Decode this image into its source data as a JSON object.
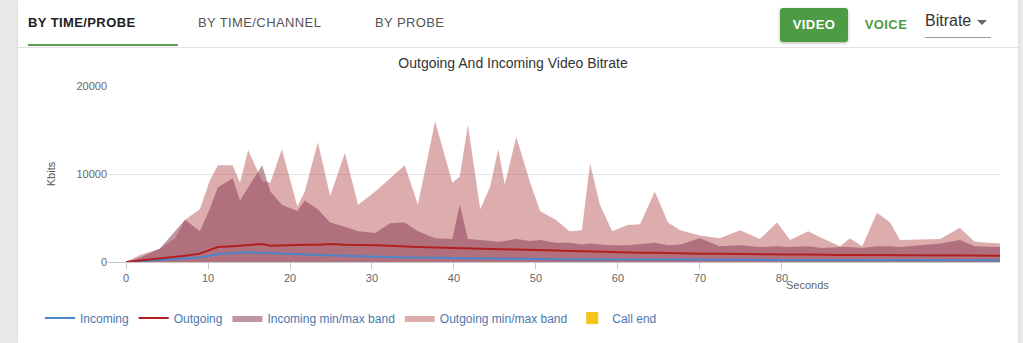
{
  "header": {
    "tabs": [
      "BY TIME/PROBE",
      "BY TIME/CHANNEL",
      "BY PROBE"
    ],
    "active_tab": "BY TIME/PROBE",
    "buttons": [
      "VIDEO",
      "VOICE"
    ],
    "active_button": "VIDEO",
    "dropdown": "Bitrate"
  },
  "chart_data": {
    "type": "line",
    "title": "Outgoing And Incoming Video Bitrate",
    "x_label": "Seconds",
    "y_label": "Kbits",
    "x": [
      0,
      1.7,
      4.1,
      6,
      7.2,
      9,
      10.2,
      11.2,
      13,
      13.9,
      14.9,
      16.6,
      17.6,
      19,
      20.9,
      21.8,
      23.4,
      24.9,
      26.7,
      28.3,
      30.4,
      32.2,
      34,
      35.6,
      37.7,
      39.8,
      40.7,
      41.7,
      43.2,
      44.4,
      45.4,
      46.2,
      47.6,
      49.3,
      50.5,
      52.4,
      54.1,
      55.6,
      56.6,
      57.8,
      59.3,
      61.2,
      62.7,
      64.5,
      66.1,
      67.6,
      70,
      72.4,
      74.9,
      77.3,
      79.4,
      81,
      83.2,
      84.9,
      87.1,
      88.3,
      89.8,
      91.6,
      93.2,
      94.4,
      99.3,
      101.7,
      103.5,
      106.6
    ],
    "xlim": [
      -2.2,
      106.6
    ],
    "xticks": [
      0,
      10,
      20,
      30,
      40,
      50,
      60,
      70,
      80
    ],
    "ylim": [
      0,
      20000
    ],
    "yticks": [
      0,
      10000,
      20000
    ],
    "grid": true,
    "legend": "bottom",
    "series": [
      {
        "name": "Incoming",
        "color": "#4a86c8",
        "type": "line",
        "values": [
          0,
          100,
          200,
          300,
          400,
          500,
          700,
          900,
          1000,
          1050,
          1100,
          1050,
          1000,
          950,
          900,
          850,
          800,
          750,
          700,
          650,
          600,
          550,
          500,
          500,
          450,
          450,
          450,
          400,
          400,
          400,
          400,
          350,
          350,
          350,
          350,
          300,
          300,
          300,
          300,
          300,
          300,
          300,
          250,
          250,
          250,
          250,
          250,
          250,
          250,
          250,
          200,
          200,
          200,
          200,
          200,
          200,
          200,
          200,
          200,
          200,
          200,
          200,
          200,
          200
        ]
      },
      {
        "name": "Outgoing",
        "color": "#b0201e",
        "type": "line",
        "values": [
          0,
          150,
          400,
          550,
          700,
          950,
          1400,
          1700,
          1800,
          1850,
          1900,
          2050,
          1850,
          1900,
          1900,
          1950,
          1950,
          2050,
          1950,
          1950,
          1900,
          1850,
          1750,
          1700,
          1650,
          1600,
          1600,
          1550,
          1500,
          1450,
          1450,
          1400,
          1400,
          1350,
          1300,
          1250,
          1200,
          1200,
          1200,
          1150,
          1100,
          1100,
          1050,
          1050,
          1000,
          1000,
          950,
          950,
          900,
          900,
          850,
          850,
          850,
          800,
          800,
          800,
          800,
          800,
          750,
          750,
          750,
          750,
          750,
          700
        ]
      },
      {
        "name": "Incoming min/max band",
        "color": "#8c3f55",
        "type": "band",
        "values": [
          0,
          500,
          1500,
          3500,
          4800,
          3500,
          6000,
          8500,
          9500,
          7000,
          8500,
          11000,
          8000,
          6500,
          5800,
          7000,
          6000,
          4500,
          4000,
          3500,
          3300,
          4400,
          4500,
          3500,
          2700,
          2600,
          6500,
          2600,
          2500,
          2400,
          2300,
          2400,
          2600,
          2400,
          2500,
          2200,
          2200,
          2000,
          2100,
          2000,
          1900,
          1900,
          2000,
          2200,
          1900,
          2000,
          2700,
          1800,
          1900,
          1700,
          1800,
          1700,
          1800,
          1600,
          1700,
          1700,
          1600,
          1800,
          1800,
          1700,
          2100,
          2500,
          1800,
          1700
        ]
      },
      {
        "name": "Outgoing min/max band",
        "color": "#b4464a",
        "type": "band",
        "values": [
          0,
          800,
          1500,
          2700,
          4800,
          6000,
          9200,
          11000,
          11000,
          9000,
          12700,
          9200,
          9000,
          12800,
          6300,
          8000,
          13600,
          7500,
          12400,
          6500,
          8000,
          9500,
          11000,
          6500,
          16000,
          9000,
          9700,
          15600,
          6000,
          8500,
          12800,
          8800,
          14200,
          9000,
          5800,
          4800,
          3500,
          3600,
          11200,
          6500,
          3500,
          4200,
          4300,
          8000,
          4500,
          3600,
          3000,
          2700,
          3600,
          2600,
          4500,
          2500,
          3500,
          2700,
          1800,
          2700,
          1800,
          5600,
          4500,
          2500,
          2600,
          3900,
          2300,
          2100
        ]
      },
      {
        "name": "Call end",
        "color": "#f5c518",
        "type": "bar",
        "values": [
          null,
          null,
          null,
          null,
          null,
          null,
          null,
          null,
          null,
          null,
          null,
          null,
          null,
          null,
          null,
          null,
          null,
          null,
          null,
          null,
          null,
          null,
          null,
          null,
          null,
          null,
          null,
          null,
          null,
          null,
          null,
          null,
          null,
          null,
          null,
          null,
          null,
          null,
          null,
          null,
          null,
          null,
          null,
          null,
          null,
          null,
          null,
          null,
          null,
          null,
          null,
          null,
          null,
          null,
          null,
          null,
          null,
          null,
          null,
          null,
          null,
          null,
          null,
          null
        ]
      }
    ]
  }
}
